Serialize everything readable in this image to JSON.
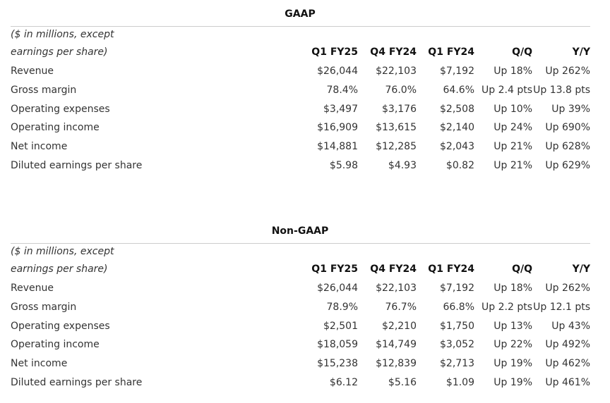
{
  "tables": [
    {
      "title": "GAAP",
      "note": "($ in millions, except earnings per share)",
      "columns": [
        "Q1 FY25",
        "Q4 FY24",
        "Q1 FY24",
        "Q/Q",
        "Y/Y"
      ],
      "rows": [
        [
          "Revenue",
          "$26,044",
          "$22,103",
          "$7,192",
          "Up 18%",
          "Up 262%"
        ],
        [
          "Gross margin",
          "78.4%",
          "76.0%",
          "64.6%",
          "Up 2.4 pts",
          "Up 13.8 pts"
        ],
        [
          "Operating expenses",
          "$3,497",
          "$3,176",
          "$2,508",
          "Up 10%",
          "Up 39%"
        ],
        [
          "Operating income",
          "$16,909",
          "$13,615",
          "$2,140",
          "Up 24%",
          "Up 690%"
        ],
        [
          "Net income",
          "$14,881",
          "$12,285",
          "$2,043",
          "Up 21%",
          "Up 628%"
        ],
        [
          "Diluted earnings per share",
          "$5.98",
          "$4.93",
          "$0.82",
          "Up 21%",
          "Up 629%"
        ]
      ]
    },
    {
      "title": "Non-GAAP",
      "note": "($ in millions, except earnings per share)",
      "columns": [
        "Q1 FY25",
        "Q4 FY24",
        "Q1 FY24",
        "Q/Q",
        "Y/Y"
      ],
      "rows": [
        [
          "Revenue",
          "$26,044",
          "$22,103",
          "$7,192",
          "Up 18%",
          "Up 262%"
        ],
        [
          "Gross margin",
          "78.9%",
          "76.7%",
          "66.8%",
          "Up 2.2 pts",
          "Up 12.1 pts"
        ],
        [
          "Operating expenses",
          "$2,501",
          "$2,210",
          "$1,750",
          "Up 13%",
          "Up 43%"
        ],
        [
          "Operating income",
          "$18,059",
          "$14,749",
          "$3,052",
          "Up 22%",
          "Up 492%"
        ],
        [
          "Net income",
          "$15,238",
          "$12,839",
          "$2,713",
          "Up 19%",
          "Up 462%"
        ],
        [
          "Diluted earnings per share",
          "$6.12",
          "$5.16",
          "$1.09",
          "Up 19%",
          "Up 461%"
        ]
      ]
    }
  ]
}
